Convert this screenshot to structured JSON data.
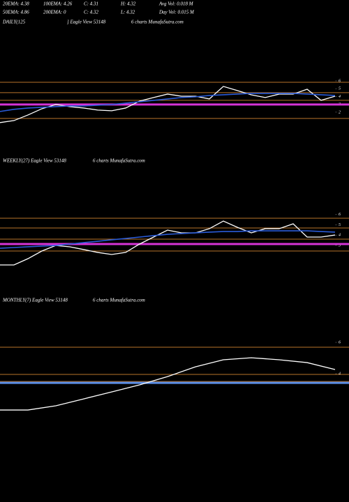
{
  "header": {
    "stats": [
      [
        "20EMA: 4.38",
        "100EMA: 4.26",
        "C: 4.31",
        "H: 4.32",
        "Avg Vol: 0.018 M"
      ],
      [
        "50EMA: 4.86",
        "200EMA: 0",
        "C: 4.32",
        "L: 4.32",
        "Day Vol: 0.015 M"
      ]
    ]
  },
  "chart_data": [
    {
      "type": "line",
      "title": "DAILY(125",
      "subtitle": "] Eagle  View  53148",
      "annotation": "6  charts MunafaSutra.com",
      "ylim": [
        0.3,
        7.42
      ],
      "yticks": [
        2,
        3,
        4,
        5,
        6
      ],
      "series": [
        {
          "color": "#ffffff",
          "values": [
            0.67,
            0.93,
            1.64,
            2.44,
            2.98,
            2.71,
            2.53,
            2.27,
            2.18,
            2.53,
            3.42,
            3.87,
            4.31,
            4.04,
            4.04,
            3.69,
            5.29,
            4.76,
            4.22,
            3.87,
            4.31,
            4.31,
            4.93,
            3.51,
            4.04
          ]
        },
        {
          "color": "#2a5bd7",
          "values": [
            2.09,
            2.36,
            2.53,
            2.62,
            2.71,
            2.8,
            2.8,
            2.89,
            2.98,
            3.16,
            3.33,
            3.51,
            3.69,
            3.87,
            3.96,
            4.13,
            4.22,
            4.31,
            4.4,
            4.4,
            4.4,
            4.4,
            4.31,
            4.22,
            4.13
          ]
        }
      ],
      "levels": [
        {
          "value": 5.82,
          "color": "#b8732a"
        },
        {
          "value": 4.49,
          "color": "#b8732a"
        },
        {
          "value": 3.51,
          "color": "#b8732a"
        },
        {
          "value": 1.2,
          "color": "#b8732a"
        },
        {
          "value": 2.98,
          "color": "#d633d6"
        }
      ]
    },
    {
      "type": "line",
      "title": "WEEKLY(27) Eagle  View  53148",
      "annotation": "6  charts MunafaSutra.com",
      "ylim": [
        0.75,
        6.53
      ],
      "yticks": [
        3,
        4,
        5,
        6
      ],
      "series": [
        {
          "color": "#ffffff",
          "values": [
            1.09,
            1.09,
            1.7,
            2.45,
            2.99,
            2.86,
            2.59,
            2.31,
            2.11,
            2.31,
            3.13,
            3.81,
            4.49,
            4.22,
            4.22,
            4.63,
            5.37,
            4.76,
            4.22,
            4.63,
            4.63,
            5.1,
            3.81,
            3.81,
            4.01
          ]
        },
        {
          "color": "#2a5bd7",
          "values": [
            2.72,
            2.79,
            2.86,
            2.93,
            2.99,
            3.13,
            3.27,
            3.4,
            3.54,
            3.67,
            3.81,
            3.95,
            4.08,
            4.15,
            4.22,
            4.29,
            4.35,
            4.35,
            4.42,
            4.42,
            4.42,
            4.42,
            4.42,
            4.35,
            4.29
          ]
        }
      ],
      "levels": [
        {
          "value": 5.65,
          "color": "#b8732a"
        },
        {
          "value": 4.69,
          "color": "#b8732a"
        },
        {
          "value": 3.61,
          "color": "#b8732a"
        },
        {
          "value": 2.45,
          "color": "#b8732a"
        },
        {
          "value": 3.13,
          "color": "#d633d6"
        }
      ]
    },
    {
      "type": "line",
      "title": "MONTHLY(7) Eagle  View  53148",
      "annotation": "6  charts MunafaSutra.com",
      "ylim": [
        1.16,
        6.49
      ],
      "yticks": [
        4,
        6
      ],
      "series": [
        {
          "color": "#ffffff",
          "values": [
            1.69,
            1.69,
            1.96,
            2.4,
            2.84,
            3.29,
            3.82,
            4.44,
            4.89,
            5.02,
            4.89,
            4.71,
            4.27
          ]
        }
      ],
      "levels": [
        {
          "value": 5.69,
          "color": "#b8732a"
        },
        {
          "value": 3.96,
          "color": "#b8732a"
        },
        {
          "value": 3.51,
          "color": "#b8732a"
        },
        {
          "value": 3.42,
          "color": "#5b8ee6"
        }
      ]
    }
  ]
}
